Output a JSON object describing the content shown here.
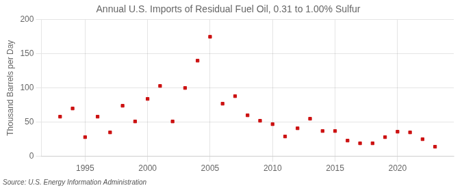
{
  "chart_data": {
    "type": "scatter",
    "title": "Annual U.S. Imports of Residual Fuel Oil, 0.31 to 1.00% Sulfur",
    "ylabel": "Thousand Barrels per Day",
    "annotations": [
      "Source: U.S. Energy Information Administration"
    ],
    "x": [
      1993,
      1994,
      1995,
      1996,
      1997,
      1998,
      1999,
      2000,
      2001,
      2002,
      2003,
      2004,
      2005,
      2006,
      2007,
      2008,
      2009,
      2010,
      2011,
      2012,
      2013,
      2014,
      2015,
      2016,
      2017,
      2018,
      2019,
      2020,
      2021,
      2022,
      2023
    ],
    "values": [
      58,
      70,
      28,
      58,
      35,
      74,
      51,
      84,
      103,
      51,
      100,
      140,
      175,
      77,
      88,
      60,
      52,
      47,
      29,
      41,
      55,
      37,
      37,
      23,
      19,
      19,
      28,
      36,
      35,
      25,
      14
    ],
    "color": "#cc1111",
    "marker": "square",
    "xlim": [
      1991.5,
      2024.5
    ],
    "ylim": [
      0,
      200
    ],
    "xticks": [
      1995,
      2000,
      2005,
      2010,
      2015,
      2020
    ],
    "yticks": [
      0,
      50,
      100,
      150,
      200
    ],
    "grid": true
  }
}
